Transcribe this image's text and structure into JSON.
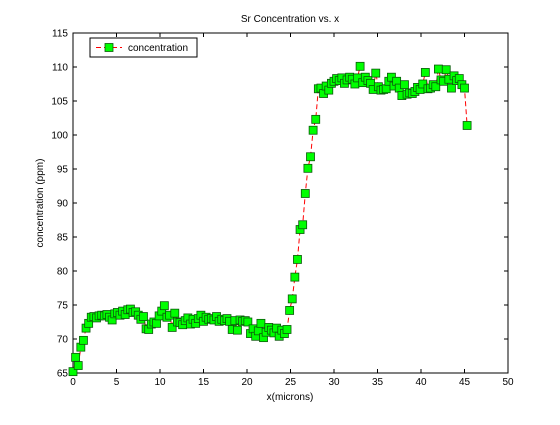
{
  "chart_data": {
    "type": "line",
    "title": "Sr Concentration vs. x",
    "xlabel": "x(microns)",
    "ylabel": "concentration (ppm)",
    "xlim": [
      0,
      50
    ],
    "ylim": [
      65,
      115
    ],
    "xticks": [
      0,
      5,
      10,
      15,
      20,
      25,
      30,
      35,
      40,
      45,
      50
    ],
    "yticks": [
      65,
      70,
      75,
      80,
      85,
      90,
      95,
      100,
      105,
      110,
      115
    ],
    "legend": "upper left",
    "x": [
      0,
      0.3,
      0.6,
      0.9,
      1.2,
      1.5,
      1.8,
      2.1,
      2.4,
      2.7,
      3.0,
      3.3,
      3.6,
      3.9,
      4.2,
      4.5,
      4.8,
      5.1,
      5.4,
      5.7,
      6.0,
      6.3,
      6.6,
      6.9,
      7.2,
      7.5,
      7.8,
      8.1,
      8.4,
      8.7,
      9.0,
      9.3,
      9.6,
      9.9,
      10.2,
      10.5,
      10.8,
      11.1,
      11.4,
      11.7,
      12.0,
      12.3,
      12.6,
      12.9,
      13.2,
      13.5,
      13.8,
      14.1,
      14.4,
      14.7,
      15.0,
      15.3,
      15.6,
      15.9,
      16.2,
      16.5,
      16.8,
      17.1,
      17.4,
      17.7,
      18.0,
      18.3,
      18.6,
      18.9,
      19.2,
      19.5,
      19.8,
      20.1,
      20.4,
      20.7,
      21.0,
      21.3,
      21.6,
      21.9,
      22.2,
      22.5,
      22.8,
      23.1,
      23.4,
      23.7,
      24.0,
      24.3,
      24.6,
      24.9,
      25.2,
      25.5,
      25.8,
      26.1,
      26.4,
      26.7,
      27.0,
      27.3,
      27.6,
      27.9,
      28.2,
      28.5,
      28.8,
      29.1,
      29.4,
      29.7,
      30.0,
      30.3,
      30.6,
      30.9,
      31.2,
      31.5,
      31.8,
      32.1,
      32.4,
      32.7,
      33.0,
      33.3,
      33.6,
      33.9,
      34.2,
      34.5,
      34.8,
      35.1,
      35.4,
      35.7,
      36.0,
      36.3,
      36.6,
      36.9,
      37.2,
      37.5,
      37.8,
      38.1,
      38.4,
      38.7,
      39.0,
      39.3,
      39.6,
      39.9,
      40.2,
      40.5,
      40.8,
      41.1,
      41.4,
      41.7,
      42.0,
      42.3,
      42.6,
      42.9,
      43.2,
      43.5,
      43.8,
      44.1,
      44.4,
      44.7,
      45.0,
      45.3
    ],
    "series": [
      {
        "name": "concentration",
        "color": "#00ff00",
        "line_color": "#ff0000",
        "values": [
          65.2,
          67.3,
          66.1,
          68.8,
          69.8,
          71.6,
          72.3,
          73.2,
          73.3,
          73.1,
          73.4,
          73.5,
          73.4,
          73.6,
          73.2,
          72.8,
          73.7,
          73.9,
          73.5,
          74.1,
          73.6,
          74.3,
          74.4,
          73.9,
          74.0,
          73.5,
          72.9,
          73.3,
          71.5,
          71.4,
          72.2,
          72.5,
          72.3,
          73.4,
          74.1,
          74.9,
          73.2,
          73.5,
          71.7,
          73.8,
          72.5,
          72.4,
          72.1,
          72.7,
          73.1,
          72.2,
          72.9,
          72.3,
          73.0,
          73.5,
          72.6,
          73.2,
          72.9,
          73.0,
          72.8,
          73.3,
          72.6,
          72.9,
          72.7,
          73.0,
          72.6,
          71.4,
          72.7,
          71.3,
          72.8,
          72.6,
          72.7,
          72.5,
          70.8,
          71.5,
          70.4,
          71.2,
          72.3,
          70.2,
          71.0,
          71.7,
          71.3,
          70.9,
          71.6,
          70.4,
          71.3,
          70.8,
          71.4,
          74.2,
          75.9,
          79.1,
          81.7,
          86.1,
          86.8,
          91.4,
          95.1,
          96.8,
          100.7,
          102.3,
          106.8,
          106.9,
          106.1,
          107.2,
          106.6,
          107.6,
          107.9,
          108.3,
          108.0,
          108.4,
          107.6,
          108.1,
          108.5,
          108.2,
          107.5,
          108.4,
          110.1,
          107.7,
          108.5,
          108.0,
          107.6,
          106.7,
          109.1,
          107.1,
          106.6,
          106.7,
          106.8,
          107.9,
          108.5,
          107.2,
          107.9,
          106.9,
          105.8,
          107.4,
          106.0,
          106.2,
          106.1,
          106.4,
          107.0,
          106.7,
          107.5,
          109.2,
          106.8,
          106.9,
          107.4,
          107.1,
          109.7,
          108.1,
          107.9,
          109.6,
          108.2,
          106.9,
          108.7,
          108.0,
          108.3,
          107.4,
          106.9,
          101.4
        ]
      }
    ]
  }
}
